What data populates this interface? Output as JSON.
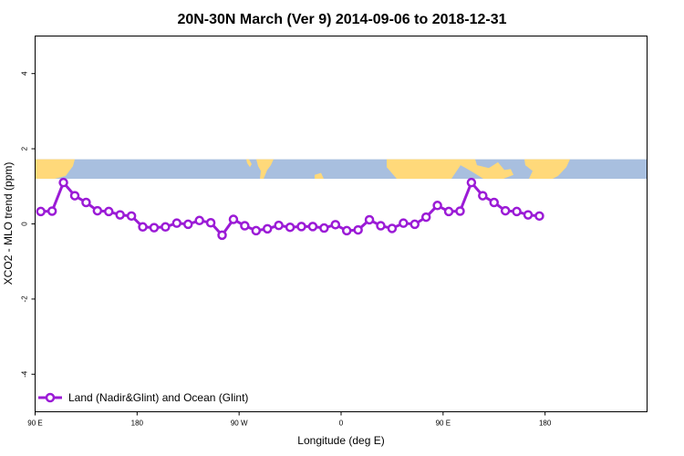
{
  "chart_data": {
    "type": "line",
    "title": "20N-30N March (Ver 9)   2014-09-06 to 2018-12-31",
    "xlabel": "Longitude (deg E)",
    "ylabel": "XCO2 - MLO trend (ppm)",
    "xlim": [
      90,
      630
    ],
    "ylim": [
      -5,
      5
    ],
    "x_ticks": [
      {
        "value": 90,
        "label": "90 E"
      },
      {
        "value": 180,
        "label": "180"
      },
      {
        "value": 270,
        "label": "90 W"
      },
      {
        "value": 360,
        "label": "0"
      },
      {
        "value": 450,
        "label": "90 E"
      },
      {
        "value": 540,
        "label": "180"
      }
    ],
    "y_ticks": [
      {
        "value": -4,
        "label": "-4"
      },
      {
        "value": -2,
        "label": "-2"
      },
      {
        "value": 0,
        "label": "0"
      },
      {
        "value": 2,
        "label": "2"
      },
      {
        "value": 4,
        "label": "4"
      }
    ],
    "map_band": {
      "lat_range": "20N-30N",
      "ylim": [
        1.2,
        1.72
      ],
      "ocean_color": "#a8bfdf",
      "land_color": "#ffd97a"
    },
    "series": [
      {
        "name": "Land (Nadir&Glint) and Ocean (Glint)",
        "color": "#9b1bd6",
        "x": [
          95,
          105,
          115,
          125,
          135,
          145,
          155,
          165,
          175,
          185,
          195,
          205,
          215,
          225,
          235,
          245,
          255,
          265,
          275,
          285,
          295,
          305,
          315,
          325,
          335,
          345,
          355,
          365,
          375,
          385,
          395,
          405,
          415,
          425,
          435,
          445,
          455,
          465,
          475,
          485,
          495,
          505,
          515,
          525,
          535
        ],
        "values": [
          0.33,
          0.34,
          1.1,
          0.75,
          0.57,
          0.35,
          0.33,
          0.24,
          0.21,
          -0.08,
          -0.1,
          -0.08,
          0.02,
          -0.01,
          0.09,
          0.03,
          -0.3,
          0.12,
          -0.05,
          -0.18,
          -0.13,
          -0.04,
          -0.09,
          -0.07,
          -0.07,
          -0.11,
          -0.02,
          -0.18,
          -0.16,
          0.11,
          -0.05,
          -0.12,
          0.02,
          -0.01,
          0.18,
          0.49,
          0.33,
          0.34,
          1.1,
          0.75,
          0.57,
          0.35,
          0.33,
          0.24,
          0.21
        ]
      }
    ],
    "legend": {
      "location": "bottom-left"
    }
  }
}
